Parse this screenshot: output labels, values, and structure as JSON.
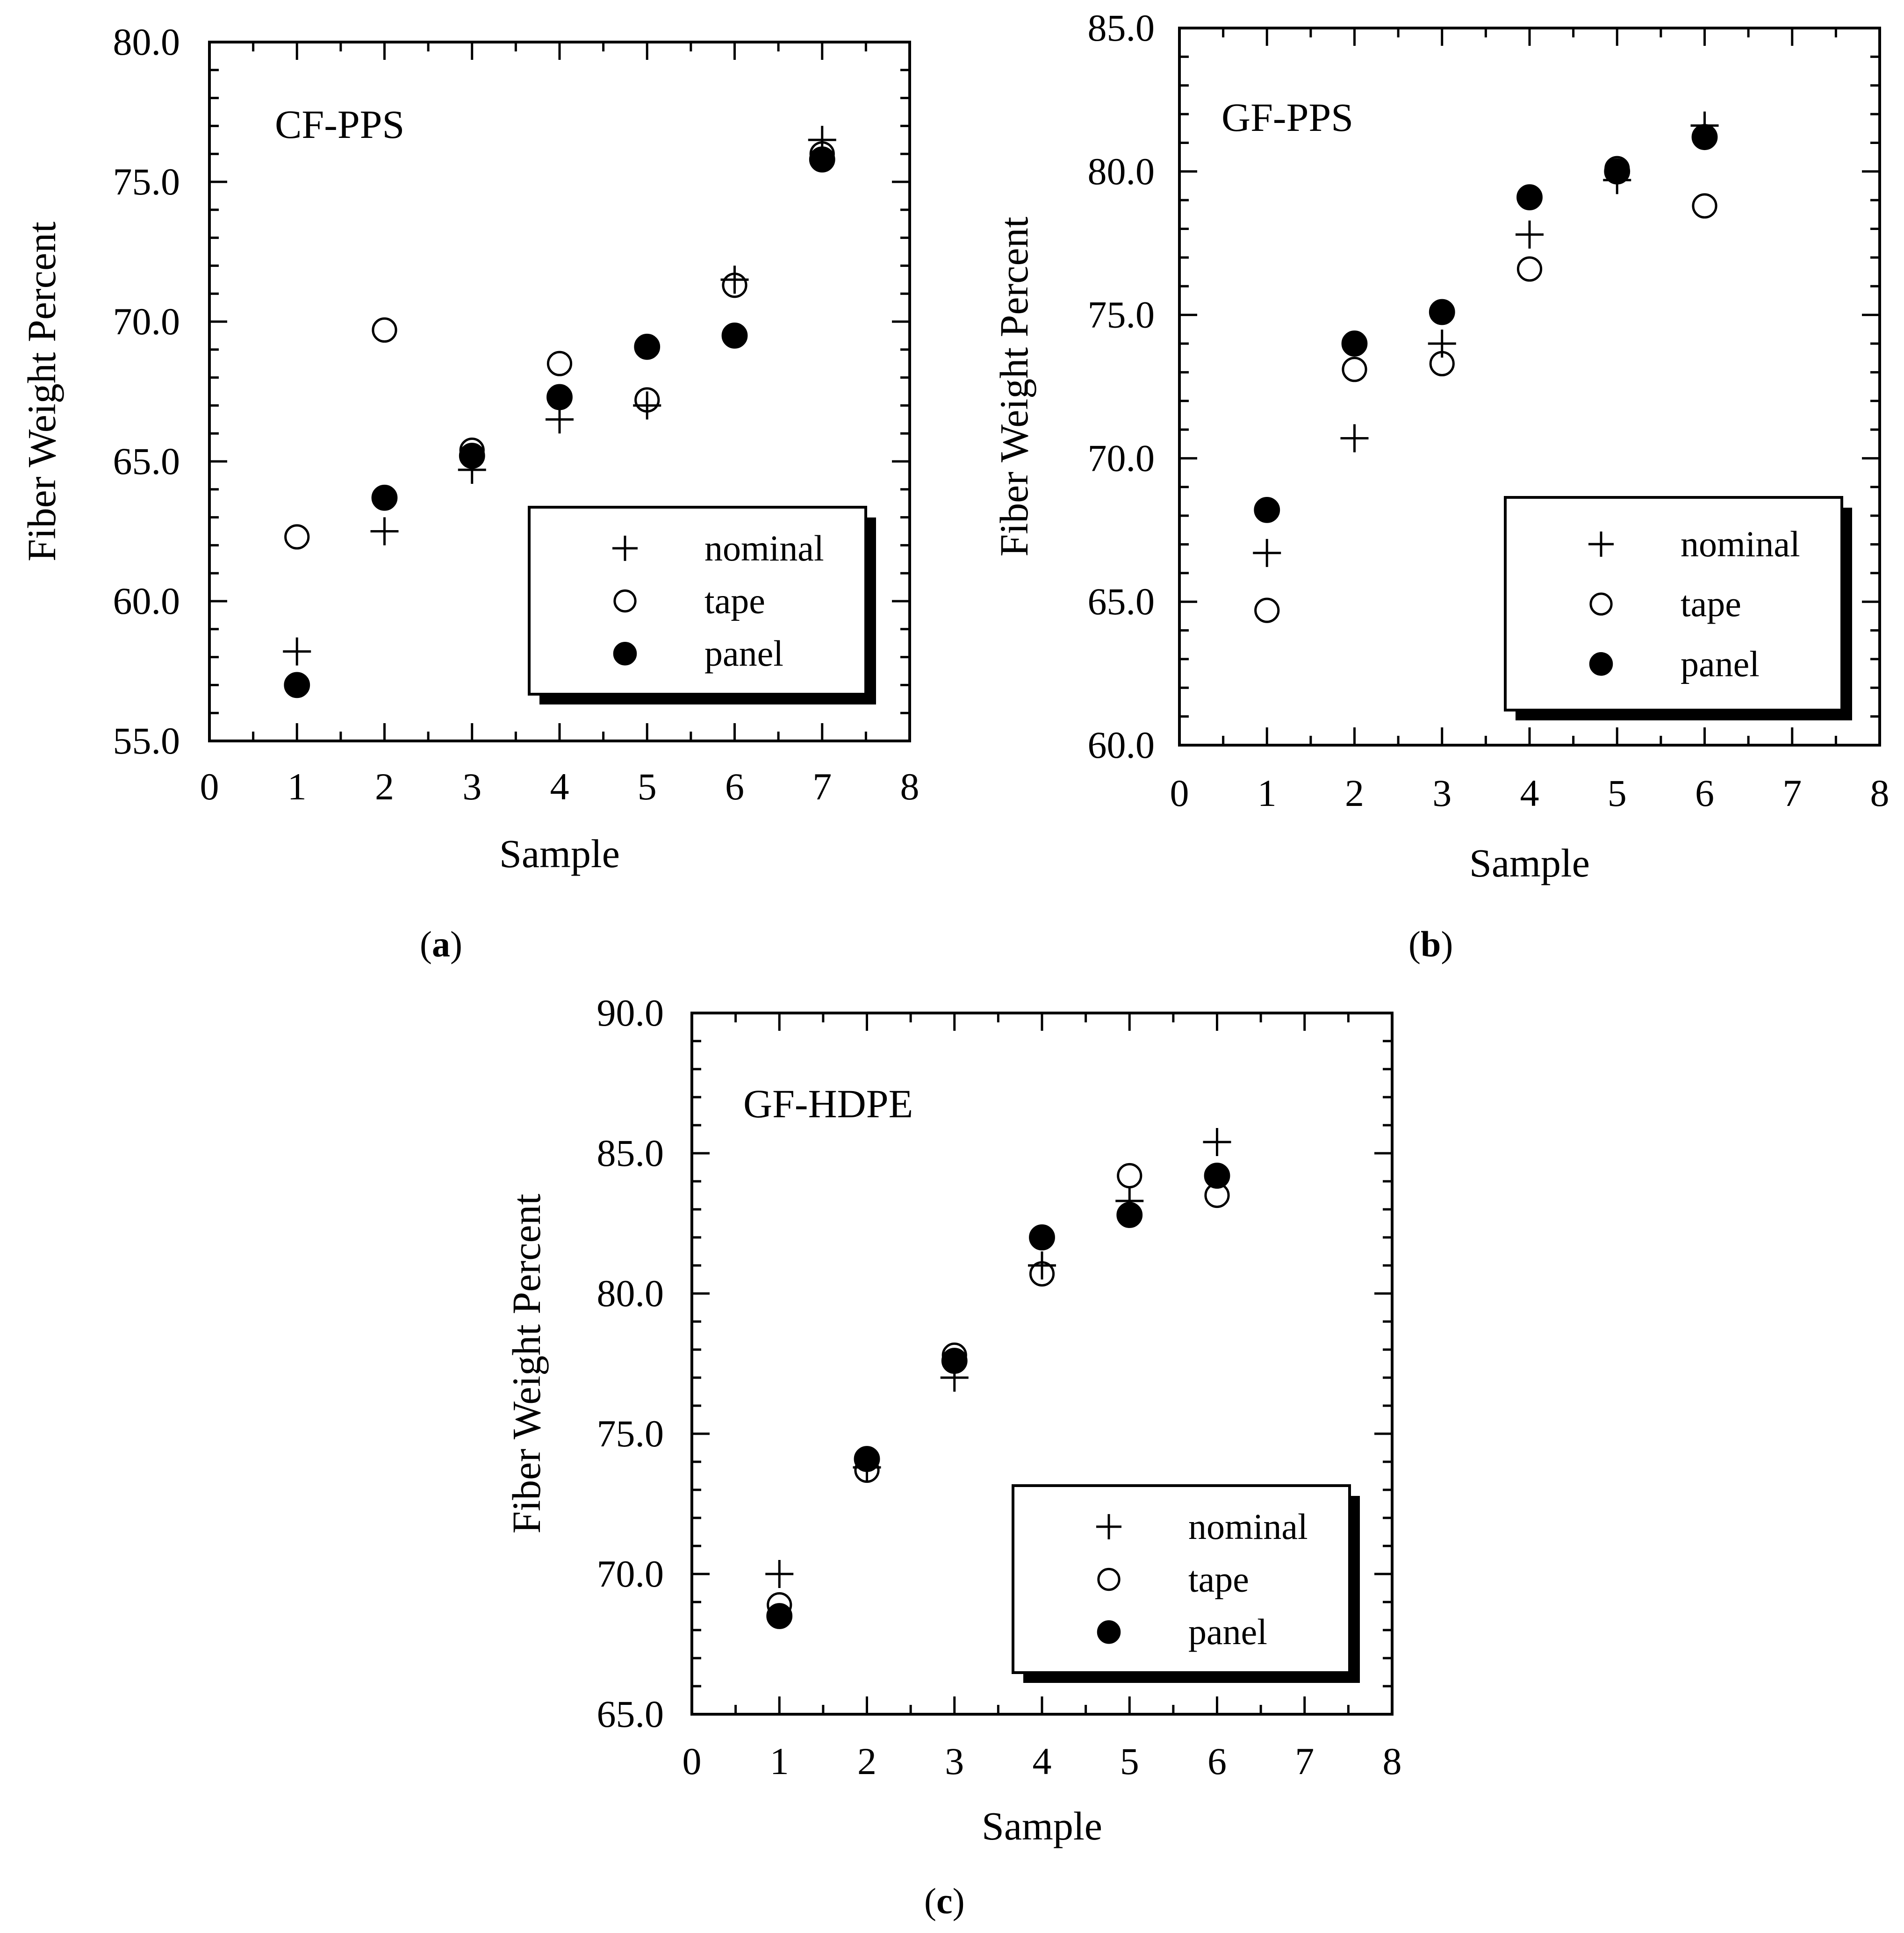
{
  "figure": {
    "captions": [
      {
        "open": "(",
        "letter": "a",
        "close": ")"
      },
      {
        "open": "(",
        "letter": "b",
        "close": ")"
      },
      {
        "open": "(",
        "letter": "c",
        "close": ")"
      }
    ]
  },
  "colors": {
    "ink": "#000000",
    "background": "#ffffff"
  },
  "chart_data": [
    {
      "type": "scatter",
      "title": "CF-PPS",
      "xlabel": "Sample",
      "ylabel": "Fiber Weight Percent",
      "xlim": [
        0,
        8
      ],
      "ylim": [
        55,
        80
      ],
      "xticks": [
        "0",
        "1",
        "2",
        "3",
        "4",
        "5",
        "6",
        "7",
        "8"
      ],
      "yticks": [
        "55.0",
        "60.0",
        "65.0",
        "70.0",
        "75.0",
        "80.0"
      ],
      "legend_position": "bottom-right",
      "series": [
        {
          "name": "nominal",
          "marker": "plus",
          "x": [
            1,
            2,
            3,
            4,
            5,
            6,
            7
          ],
          "y": [
            58.2,
            62.5,
            64.7,
            66.5,
            67.0,
            71.5,
            76.5
          ]
        },
        {
          "name": "tape",
          "marker": "open-circle",
          "x": [
            1,
            2,
            3,
            4,
            5,
            6,
            7
          ],
          "y": [
            62.3,
            69.7,
            65.4,
            68.5,
            67.2,
            71.3,
            76.0
          ]
        },
        {
          "name": "panel",
          "marker": "filled-circle",
          "x": [
            1,
            2,
            3,
            4,
            5,
            6,
            7
          ],
          "y": [
            57.0,
            63.7,
            65.2,
            67.3,
            69.1,
            69.5,
            75.8
          ]
        }
      ]
    },
    {
      "type": "scatter",
      "title": "GF-PPS",
      "xlabel": "Sample",
      "ylabel": "Fiber Weight Percent",
      "xlim": [
        0,
        8
      ],
      "ylim": [
        60,
        85
      ],
      "xticks": [
        "0",
        "1",
        "2",
        "3",
        "4",
        "5",
        "6",
        "7",
        "8"
      ],
      "yticks": [
        "60.0",
        "65.0",
        "70.0",
        "75.0",
        "80.0",
        "85.0"
      ],
      "legend_position": "bottom-right",
      "series": [
        {
          "name": "nominal",
          "marker": "plus",
          "x": [
            1,
            2,
            3,
            4,
            5,
            6
          ],
          "y": [
            66.7,
            70.7,
            74.0,
            77.8,
            79.7,
            81.6
          ]
        },
        {
          "name": "tape",
          "marker": "open-circle",
          "x": [
            1,
            2,
            3,
            4,
            5,
            6
          ],
          "y": [
            64.7,
            73.1,
            73.3,
            76.6,
            80.1,
            78.8
          ]
        },
        {
          "name": "panel",
          "marker": "filled-circle",
          "x": [
            1,
            2,
            3,
            4,
            5,
            6
          ],
          "y": [
            68.2,
            74.0,
            75.1,
            79.1,
            80.0,
            81.2
          ]
        }
      ]
    },
    {
      "type": "scatter",
      "title": "GF-HDPE",
      "xlabel": "Sample",
      "ylabel": "Fiber Weight Percent",
      "xlim": [
        0,
        8
      ],
      "ylim": [
        65,
        90
      ],
      "xticks": [
        "0",
        "1",
        "2",
        "3",
        "4",
        "5",
        "6",
        "7",
        "8"
      ],
      "yticks": [
        "65.0",
        "70.0",
        "75.0",
        "80.0",
        "85.0",
        "90.0"
      ],
      "legend_position": "bottom-right",
      "series": [
        {
          "name": "nominal",
          "marker": "plus",
          "x": [
            1,
            2,
            3,
            4,
            5,
            6
          ],
          "y": [
            70.0,
            73.8,
            77.0,
            81.0,
            83.3,
            85.4
          ]
        },
        {
          "name": "tape",
          "marker": "open-circle",
          "x": [
            1,
            2,
            3,
            4,
            5,
            6
          ],
          "y": [
            68.9,
            73.7,
            77.8,
            80.7,
            84.2,
            83.5
          ]
        },
        {
          "name": "panel",
          "marker": "filled-circle",
          "x": [
            1,
            2,
            3,
            4,
            5,
            6
          ],
          "y": [
            68.5,
            74.1,
            77.6,
            82.0,
            82.8,
            84.2
          ]
        }
      ]
    }
  ]
}
